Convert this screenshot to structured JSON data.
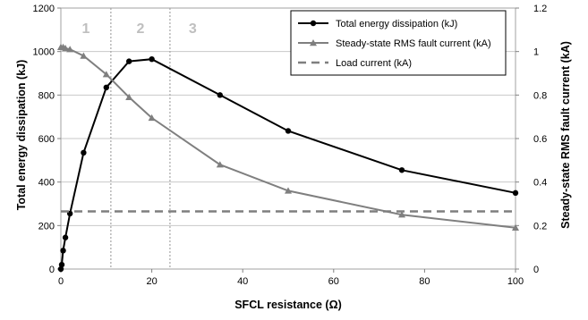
{
  "chart_data": {
    "type": "line",
    "xlabel": "SFCL resistance (Ω)",
    "ylabel_left": "Total energy dissipation (kJ)",
    "ylabel_right": "Steady-state RMS fault current (kA)",
    "xlim": [
      0,
      100
    ],
    "ylim_left": [
      0,
      1200
    ],
    "ylim_right": [
      0,
      1.2
    ],
    "x_ticks": [
      0,
      20,
      40,
      60,
      80,
      100
    ],
    "y_left_ticks": [
      0,
      200,
      400,
      600,
      800,
      1000,
      1200
    ],
    "y_right_ticks": [
      0,
      0.2,
      0.4,
      0.6,
      0.8,
      1,
      1.2
    ],
    "grid": "horizontal",
    "legend_position": "top-right",
    "region_boundaries": [
      11,
      24
    ],
    "regions": [
      {
        "label": "1",
        "x": 5.5
      },
      {
        "label": "2",
        "x": 17.5
      },
      {
        "label": "3",
        "x": 29
      }
    ],
    "series": [
      {
        "name": "Total energy dissipation (kJ)",
        "axis": "left",
        "color": "#000000",
        "marker": "circle",
        "line_style": "solid",
        "x": [
          0,
          0.2,
          0.5,
          1,
          2,
          5,
          10,
          15,
          20,
          35,
          50,
          75,
          100
        ],
        "y": [
          0,
          20,
          85,
          145,
          255,
          535,
          835,
          955,
          965,
          800,
          635,
          455,
          350
        ]
      },
      {
        "name": "Steady-state RMS fault current (kA)",
        "axis": "right",
        "color": "#7f7f7f",
        "marker": "triangle",
        "line_style": "solid",
        "x": [
          0,
          0.5,
          1,
          2,
          5,
          10,
          15,
          20,
          35,
          50,
          75,
          100
        ],
        "y": [
          1.02,
          1.02,
          1.015,
          1.01,
          0.98,
          0.895,
          0.79,
          0.695,
          0.48,
          0.36,
          0.25,
          0.19
        ]
      },
      {
        "name": "Load current (kA)",
        "axis": "right",
        "color": "#7f7f7f",
        "marker": "none",
        "line_style": "dashed",
        "x": [
          0,
          100
        ],
        "y": [
          0.265,
          0.265
        ]
      }
    ]
  }
}
